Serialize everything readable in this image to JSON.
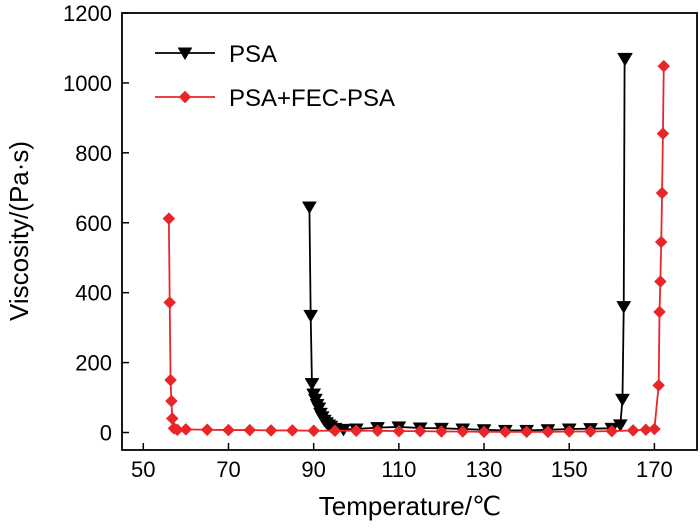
{
  "chart_data": {
    "type": "line",
    "xlabel": "Temperature/℃",
    "ylabel": "Viscosity/(Pa·s)",
    "xlim": [
      45,
      180
    ],
    "ylim": [
      -50,
      1200
    ],
    "xticks": [
      50,
      70,
      90,
      110,
      130,
      150,
      170
    ],
    "yticks": [
      0,
      200,
      400,
      600,
      800,
      1000,
      1200
    ],
    "legend_position": "top-left",
    "series": [
      {
        "name": "PSA",
        "color": "#000000",
        "marker": "triangle-down",
        "x": [
          89,
          89.3,
          89.6,
          90,
          90.4,
          90.8,
          91.2,
          91.6,
          92,
          92.5,
          93,
          93.5,
          94,
          95,
          97,
          100,
          105,
          110,
          115,
          120,
          125,
          130,
          135,
          140,
          145,
          150,
          155,
          160,
          162,
          162.5,
          162.8,
          163,
          163.2
        ],
        "y": [
          645,
          335,
          140,
          110,
          95,
          80,
          70,
          55,
          45,
          35,
          28,
          22,
          18,
          12,
          9,
          10,
          14,
          16,
          13,
          12,
          10,
          8,
          6,
          6,
          8,
          10,
          11,
          12,
          22,
          95,
          360,
          1070,
          1070
        ]
      },
      {
        "name": "PSA+FEC-PSA",
        "color": "#e8262a",
        "marker": "diamond",
        "x": [
          56,
          56.2,
          56.4,
          56.6,
          56.8,
          57.2,
          58,
          60,
          65,
          70,
          75,
          80,
          85,
          90,
          95,
          100,
          105,
          110,
          115,
          120,
          125,
          130,
          135,
          140,
          145,
          150,
          155,
          160,
          165,
          168,
          170,
          171,
          171.2,
          171.4,
          171.6,
          171.8,
          172,
          172.2
        ],
        "y": [
          612,
          372,
          150,
          90,
          40,
          12,
          8,
          9,
          8,
          7,
          7,
          6,
          6,
          5,
          5,
          5,
          5,
          4,
          4,
          3,
          3,
          2,
          2,
          2,
          2,
          3,
          3,
          4,
          6,
          8,
          10,
          135,
          345,
          432,
          545,
          685,
          855,
          1048
        ]
      }
    ]
  }
}
